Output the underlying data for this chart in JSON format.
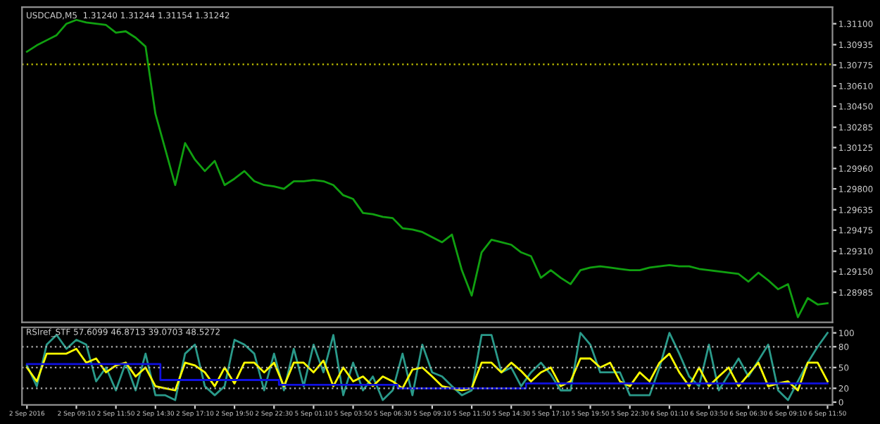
{
  "chart_data": [
    {
      "type": "line",
      "title": "USDCAD,M5  1.31240 1.31244 1.31154 1.31242",
      "tick_labels": "y",
      "grid": false,
      "categories": [
        null,
        null,
        null,
        null,
        null,
        null,
        null,
        null,
        null,
        null,
        null,
        null,
        null,
        null,
        null,
        null,
        null,
        null,
        null,
        null,
        null,
        null,
        null,
        null,
        null,
        null,
        null,
        null,
        null,
        null,
        null,
        null,
        null,
        null,
        null,
        null,
        null,
        null,
        null,
        null,
        null,
        null,
        null,
        null,
        null,
        null,
        null,
        null,
        null,
        null,
        null,
        null,
        null,
        null,
        null,
        null,
        null,
        null,
        null,
        null,
        null,
        null,
        null,
        null,
        null,
        null,
        null,
        null,
        null,
        null,
        null,
        null,
        null,
        null,
        null,
        null,
        null,
        null,
        null,
        null,
        null,
        null
      ],
      "ylim": [
        1.2875,
        1.3123
      ],
      "yticks": [
        {
          "value": 1.311,
          "label": "1.31100"
        },
        {
          "value": 1.30935,
          "label": "1.30935"
        },
        {
          "value": 1.30775,
          "label": "1.30775"
        },
        {
          "value": 1.3061,
          "label": "1.30610"
        },
        {
          "value": 1.3045,
          "label": "1.30450"
        },
        {
          "value": 1.30285,
          "label": "1.30285"
        },
        {
          "value": 1.30125,
          "label": "1.30125"
        },
        {
          "value": 1.2996,
          "label": "1.29960"
        },
        {
          "value": 1.298,
          "label": "1.29800"
        },
        {
          "value": 1.29635,
          "label": "1.29635"
        },
        {
          "value": 1.29475,
          "label": "1.29475"
        },
        {
          "value": 1.2931,
          "label": "1.29310"
        },
        {
          "value": 1.2915,
          "label": "1.29150"
        },
        {
          "value": 1.28985,
          "label": "1.28985"
        }
      ],
      "ref_lines": [
        {
          "axis": "y",
          "value": 1.3078,
          "color": "#c8c800",
          "line_style": "dotted"
        }
      ],
      "series": [
        {
          "color": "#10a010",
          "values": [
            1.3088,
            1.3093,
            1.3097,
            1.3101,
            1.311,
            1.3113,
            1.3111,
            1.311,
            1.3109,
            1.3103,
            1.3104,
            1.3099,
            1.3092,
            1.3039,
            1.3011,
            1.2983,
            1.3016,
            1.3003,
            1.2994,
            1.3002,
            1.2983,
            1.2988,
            1.2994,
            1.2986,
            1.2983,
            1.2982,
            1.298,
            1.2986,
            1.2986,
            1.2987,
            1.2986,
            1.2983,
            1.2975,
            1.2972,
            1.2961,
            1.296,
            1.2958,
            1.2957,
            1.2949,
            1.2948,
            1.2946,
            1.2942,
            1.2938,
            1.2944,
            1.2916,
            1.2896,
            1.293,
            1.294,
            1.2938,
            1.2936,
            1.293,
            1.2927,
            1.291,
            1.2916,
            1.291,
            1.2905,
            1.2916,
            1.2918,
            1.2919,
            1.2918,
            1.2917,
            1.2916,
            1.2916,
            1.2918,
            1.2919,
            1.292,
            1.2919,
            1.2919,
            1.2917,
            1.2916,
            1.2915,
            1.2914,
            1.2913,
            1.2907,
            1.2914,
            1.2908,
            1.2901,
            1.2905,
            1.2879,
            1.2894,
            1.2889,
            1.289
          ]
        }
      ]
    },
    {
      "type": "line",
      "title": "RSIref_STF 57.6099 46.8713 39.0703 48.5272",
      "grid": false,
      "categories": [
        "2 Sep 2016",
        null,
        null,
        null,
        null,
        "2 Sep 09:10",
        null,
        null,
        null,
        "2 Sep 11:50",
        null,
        null,
        null,
        "2 Sep 14:30",
        null,
        null,
        null,
        "2 Sep 17:10",
        null,
        null,
        null,
        "2 Sep 19:50",
        null,
        null,
        null,
        "2 Sep 22:30",
        null,
        null,
        null,
        "5 Sep 01:10",
        null,
        null,
        null,
        "5 Sep 03:50",
        null,
        null,
        null,
        "5 Sep 06:30",
        null,
        null,
        null,
        "5 Sep 09:10",
        null,
        null,
        null,
        "5 Sep 11:50",
        null,
        null,
        null,
        "5 Sep 14:30",
        null,
        null,
        null,
        "5 Sep 17:10",
        null,
        null,
        null,
        "5 Sep 19:50",
        null,
        null,
        null,
        "5 Sep 22:30",
        null,
        null,
        null,
        "6 Sep 01:10",
        null,
        null,
        null,
        "6 Sep 03:50",
        null,
        null,
        null,
        "6 Sep 06:30",
        null,
        null,
        null,
        "6 Sep 09:10",
        null,
        null,
        null,
        "6 Sep 11:50"
      ],
      "ylim": [
        -4,
        108
      ],
      "yticks": [
        0,
        20,
        50,
        80,
        100
      ],
      "ref_lines": [
        {
          "axis": "y",
          "value": 80,
          "color": "#b0b0b0",
          "line_style": "dotted"
        },
        {
          "axis": "y",
          "value": 50,
          "color": "#b0b0b0",
          "line_style": "dotted"
        },
        {
          "axis": "y",
          "value": 20,
          "color": "#b0b0b0",
          "line_style": "dotted"
        }
      ],
      "series": [
        {
          "color": "#2a9a8a",
          "values": [
            53,
            23,
            83,
            97,
            77,
            90,
            83,
            30,
            50,
            17,
            57,
            17,
            70,
            10,
            10,
            3,
            70,
            83,
            23,
            10,
            23,
            90,
            83,
            70,
            17,
            70,
            17,
            77,
            23,
            83,
            43,
            97,
            10,
            57,
            17,
            37,
            3,
            17,
            70,
            10,
            83,
            43,
            37,
            23,
            10,
            17,
            97,
            97,
            43,
            50,
            23,
            43,
            57,
            40,
            17,
            17,
            100,
            83,
            43,
            43,
            43,
            10,
            10,
            10,
            50,
            100,
            70,
            37,
            23,
            83,
            17,
            40,
            63,
            37,
            60,
            83,
            17,
            3,
            30,
            57,
            80,
            100
          ]
        },
        {
          "color": "#ffff00",
          "values": [
            50,
            30,
            70,
            70,
            70,
            77,
            57,
            63,
            43,
            53,
            57,
            37,
            50,
            23,
            20,
            17,
            57,
            53,
            43,
            23,
            50,
            27,
            57,
            57,
            43,
            57,
            23,
            57,
            57,
            43,
            60,
            23,
            50,
            30,
            37,
            23,
            37,
            30,
            20,
            47,
            50,
            37,
            23,
            20,
            17,
            20,
            57,
            57,
            43,
            57,
            45,
            30,
            43,
            50,
            23,
            30,
            63,
            63,
            50,
            57,
            30,
            23,
            43,
            30,
            57,
            70,
            43,
            23,
            50,
            23,
            37,
            50,
            23,
            40,
            57,
            23,
            27,
            30,
            17,
            57,
            57,
            30
          ]
        },
        {
          "type": "step",
          "color": "#1010e0",
          "values": [
            55,
            55,
            55,
            55,
            55,
            55,
            55,
            55,
            55,
            55,
            55,
            55,
            55,
            55,
            32,
            32,
            32,
            32,
            32,
            32,
            32,
            32,
            32,
            32,
            32,
            32,
            25,
            25,
            25,
            25,
            25,
            25,
            25,
            25,
            25,
            25,
            25,
            25,
            20,
            20,
            20,
            20,
            20,
            20,
            20,
            20,
            20,
            20,
            20,
            20,
            20,
            27,
            27,
            27,
            27,
            27,
            27,
            27,
            27,
            27,
            27,
            27,
            27,
            27,
            27,
            27,
            27,
            27,
            27,
            27,
            27,
            27,
            27,
            27,
            27,
            27,
            27,
            27,
            27,
            27,
            27,
            27
          ]
        }
      ]
    }
  ]
}
